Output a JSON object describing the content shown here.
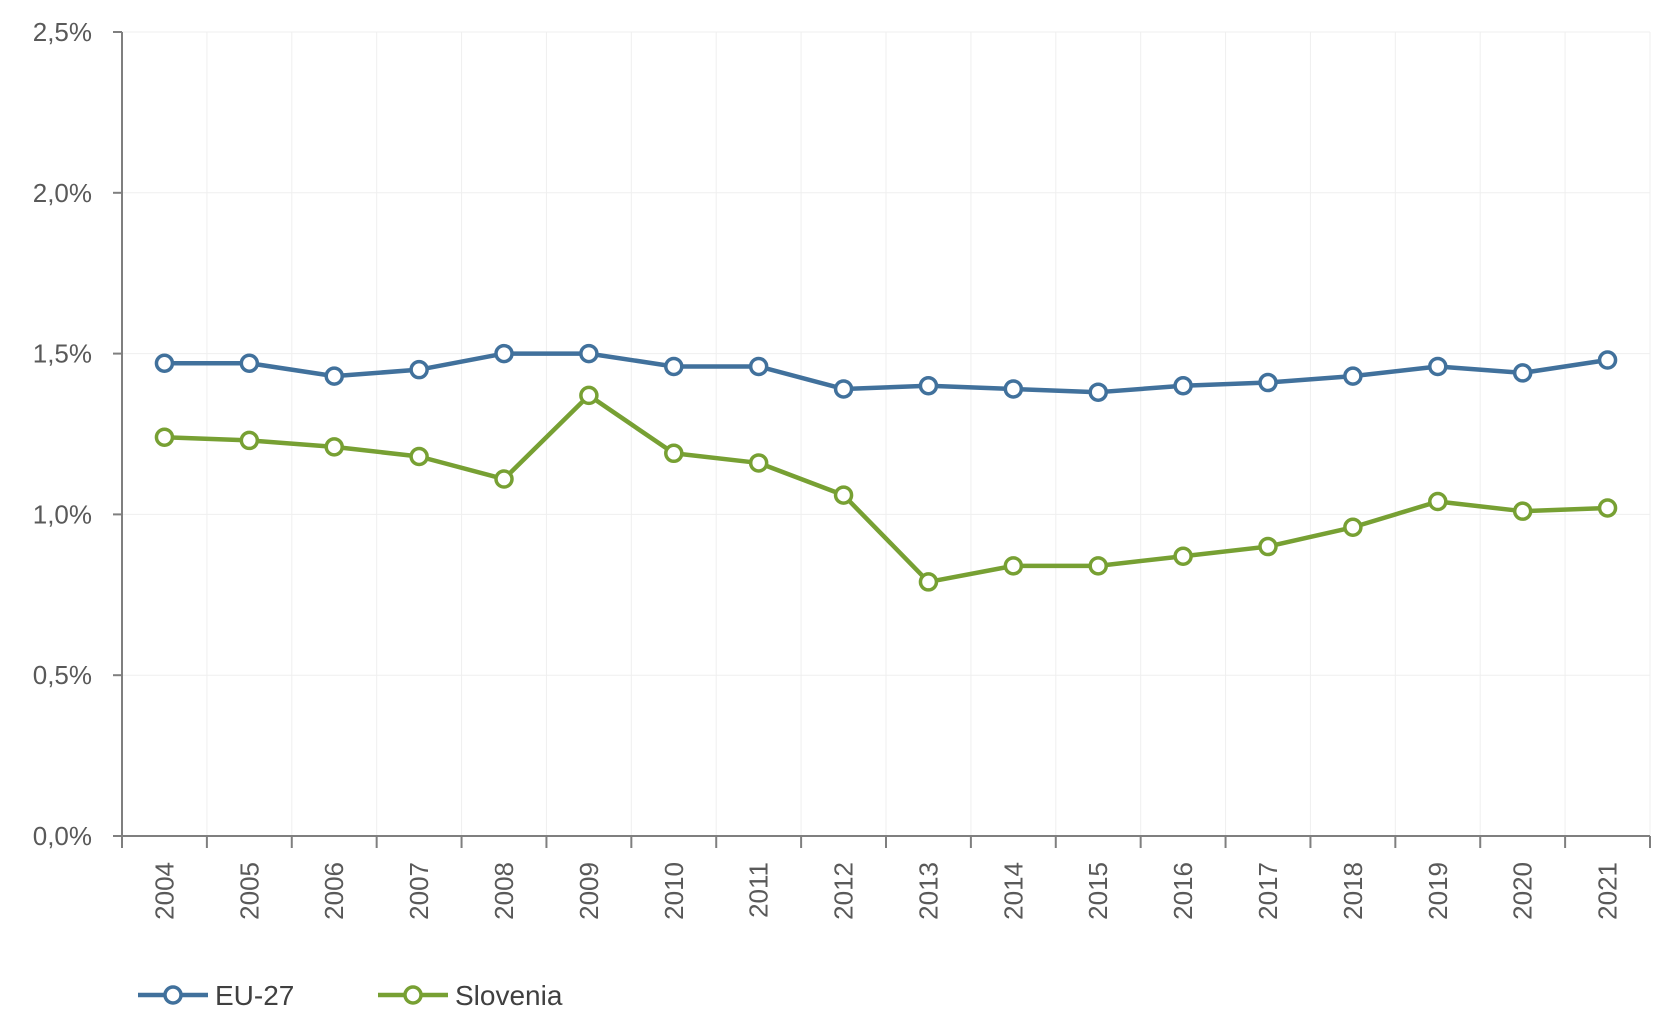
{
  "chart_data": {
    "type": "line",
    "title": "",
    "xlabel": "",
    "ylabel": "",
    "categories": [
      "2004",
      "2005",
      "2006",
      "2007",
      "2008",
      "2009",
      "2010",
      "2011",
      "2012",
      "2013",
      "2014",
      "2015",
      "2016",
      "2017",
      "2018",
      "2019",
      "2020",
      "2021"
    ],
    "ylim": [
      0,
      2.5
    ],
    "y_ticks": [
      {
        "value": 0.0,
        "label": "0,0%"
      },
      {
        "value": 0.5,
        "label": "0,5%"
      },
      {
        "value": 1.0,
        "label": "1,0%"
      },
      {
        "value": 1.5,
        "label": "1,5%"
      },
      {
        "value": 2.0,
        "label": "2,0%"
      },
      {
        "value": 2.5,
        "label": "2,5%"
      }
    ],
    "grid": true,
    "legend_position": "bottom-left",
    "series": [
      {
        "name": "EU-27",
        "color": "#41719c",
        "values": [
          1.47,
          1.47,
          1.43,
          1.45,
          1.5,
          1.5,
          1.46,
          1.46,
          1.39,
          1.4,
          1.39,
          1.38,
          1.4,
          1.41,
          1.43,
          1.46,
          1.44,
          1.48
        ]
      },
      {
        "name": "Slovenia",
        "color": "#77a033",
        "values": [
          1.24,
          1.23,
          1.21,
          1.18,
          1.11,
          1.37,
          1.19,
          1.16,
          1.06,
          0.79,
          0.84,
          0.84,
          0.87,
          0.9,
          0.96,
          1.04,
          1.01,
          1.02
        ]
      }
    ]
  }
}
